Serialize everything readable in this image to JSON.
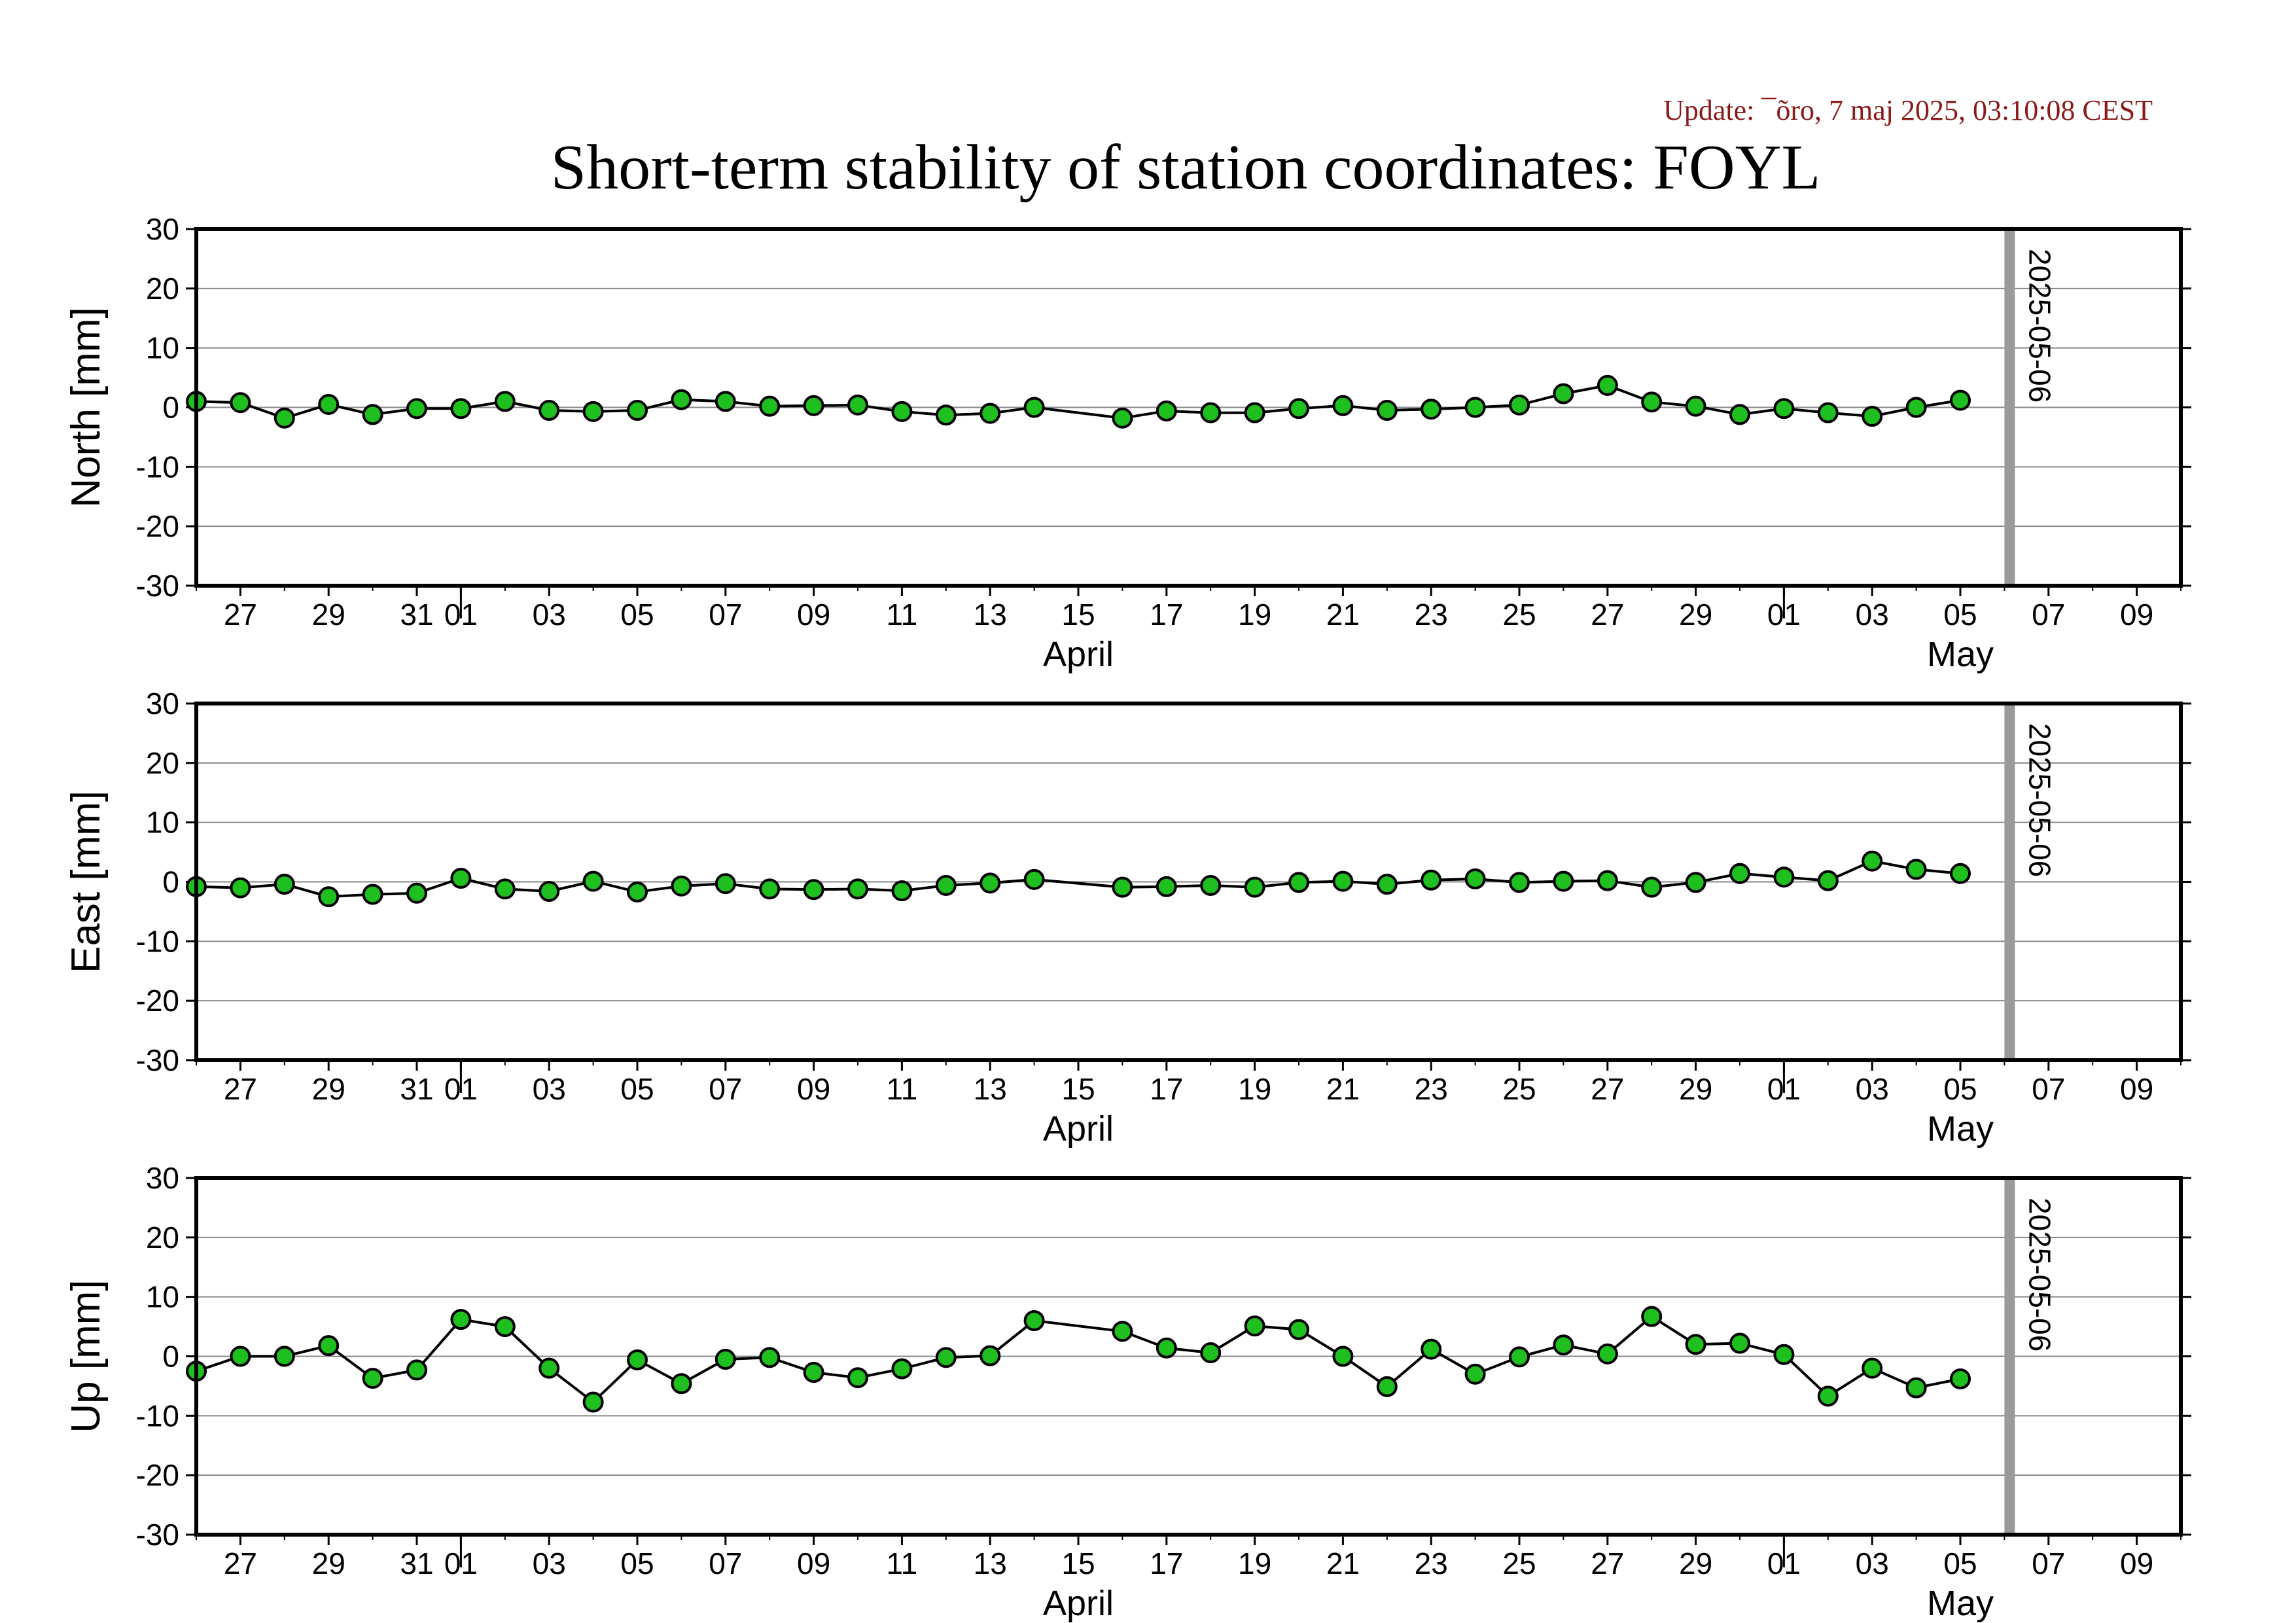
{
  "update": "Update: ¯õro, 7 maj 2025, 03:10:08 CEST",
  "title": "Short-term stability of station coordinates: FOYL",
  "colors": {
    "marker_fill": "#1fbf1f",
    "marker_stroke": "#000000",
    "series_line": "#000000",
    "marker_line": "#9a9a9a",
    "update_text": "#8b1a1a",
    "gridline": "#888888"
  },
  "chart_data": [
    {
      "type": "line",
      "ylabel": "North [mm]",
      "ylim": [
        -30,
        30
      ],
      "yticks": [
        -30,
        -20,
        -10,
        0,
        10,
        20,
        30
      ],
      "ygrid": true,
      "xlim": [
        "2025-03-26",
        "2025-05-10"
      ],
      "x_tick_labels": [
        "27",
        "29",
        "31",
        "01",
        "03",
        "05",
        "07",
        "09",
        "11",
        "13",
        "15",
        "17",
        "19",
        "21",
        "23",
        "25",
        "27",
        "29",
        "01",
        "03",
        "05",
        "07",
        "09"
      ],
      "x_tick_dates": [
        "2025-03-27",
        "2025-03-29",
        "2025-03-31",
        "2025-04-01",
        "2025-04-03",
        "2025-04-05",
        "2025-04-07",
        "2025-04-09",
        "2025-04-11",
        "2025-04-13",
        "2025-04-15",
        "2025-04-17",
        "2025-04-19",
        "2025-04-21",
        "2025-04-23",
        "2025-04-25",
        "2025-04-27",
        "2025-04-29",
        "2025-05-01",
        "2025-05-03",
        "2025-05-05",
        "2025-05-07",
        "2025-05-09"
      ],
      "month_labels": [
        {
          "label": "April",
          "date": "2025-04-15"
        },
        {
          "label": "May",
          "date": "2025-05-05"
        }
      ],
      "month_boundaries": [
        "2025-04-01",
        "2025-05-01"
      ],
      "marker": {
        "date": "2025-05-06",
        "label": "2025-05-06"
      },
      "x": [
        "2025-03-26",
        "2025-03-27",
        "2025-03-28",
        "2025-03-29",
        "2025-03-30",
        "2025-03-31",
        "2025-04-01",
        "2025-04-02",
        "2025-04-03",
        "2025-04-04",
        "2025-04-05",
        "2025-04-06",
        "2025-04-07",
        "2025-04-08",
        "2025-04-09",
        "2025-04-10",
        "2025-04-11",
        "2025-04-12",
        "2025-04-13",
        "2025-04-14",
        "2025-04-16",
        "2025-04-17",
        "2025-04-18",
        "2025-04-19",
        "2025-04-20",
        "2025-04-21",
        "2025-04-22",
        "2025-04-23",
        "2025-04-24",
        "2025-04-25",
        "2025-04-26",
        "2025-04-27",
        "2025-04-28",
        "2025-04-29",
        "2025-04-30",
        "2025-05-01",
        "2025-05-02",
        "2025-05-03",
        "2025-05-04",
        "2025-05-05"
      ],
      "y": [
        1.0,
        0.8,
        -1.8,
        0.5,
        -1.2,
        -0.2,
        -0.2,
        1.0,
        -0.5,
        -0.7,
        -0.5,
        1.3,
        1.0,
        0.2,
        0.3,
        0.4,
        -0.7,
        -1.3,
        -1.0,
        0.0,
        -1.8,
        -0.6,
        -0.9,
        -0.9,
        -0.2,
        0.3,
        -0.5,
        -0.3,
        0.0,
        0.4,
        2.3,
        3.7,
        0.9,
        0.2,
        -1.2,
        -0.2,
        -0.9,
        -1.5,
        0.0,
        1.2
      ]
    },
    {
      "type": "line",
      "ylabel": "East [mm]",
      "ylim": [
        -30,
        30
      ],
      "yticks": [
        -30,
        -20,
        -10,
        0,
        10,
        20,
        30
      ],
      "ygrid": true,
      "xlim": [
        "2025-03-26",
        "2025-05-10"
      ],
      "x_tick_labels": [
        "27",
        "29",
        "31",
        "01",
        "03",
        "05",
        "07",
        "09",
        "11",
        "13",
        "15",
        "17",
        "19",
        "21",
        "23",
        "25",
        "27",
        "29",
        "01",
        "03",
        "05",
        "07",
        "09"
      ],
      "x_tick_dates": [
        "2025-03-27",
        "2025-03-29",
        "2025-03-31",
        "2025-04-01",
        "2025-04-03",
        "2025-04-05",
        "2025-04-07",
        "2025-04-09",
        "2025-04-11",
        "2025-04-13",
        "2025-04-15",
        "2025-04-17",
        "2025-04-19",
        "2025-04-21",
        "2025-04-23",
        "2025-04-25",
        "2025-04-27",
        "2025-04-29",
        "2025-05-01",
        "2025-05-03",
        "2025-05-05",
        "2025-05-07",
        "2025-05-09"
      ],
      "month_labels": [
        {
          "label": "April",
          "date": "2025-04-15"
        },
        {
          "label": "May",
          "date": "2025-05-05"
        }
      ],
      "month_boundaries": [
        "2025-04-01",
        "2025-05-01"
      ],
      "marker": {
        "date": "2025-05-06",
        "label": "2025-05-06"
      },
      "x": [
        "2025-03-26",
        "2025-03-27",
        "2025-03-28",
        "2025-03-29",
        "2025-03-30",
        "2025-03-31",
        "2025-04-01",
        "2025-04-02",
        "2025-04-03",
        "2025-04-04",
        "2025-04-05",
        "2025-04-06",
        "2025-04-07",
        "2025-04-08",
        "2025-04-09",
        "2025-04-10",
        "2025-04-11",
        "2025-04-12",
        "2025-04-13",
        "2025-04-14",
        "2025-04-16",
        "2025-04-17",
        "2025-04-18",
        "2025-04-19",
        "2025-04-20",
        "2025-04-21",
        "2025-04-22",
        "2025-04-23",
        "2025-04-24",
        "2025-04-25",
        "2025-04-26",
        "2025-04-27",
        "2025-04-28",
        "2025-04-29",
        "2025-04-30",
        "2025-05-01",
        "2025-05-02",
        "2025-05-03",
        "2025-05-04",
        "2025-05-05"
      ],
      "y": [
        -0.8,
        -1.0,
        -0.4,
        -2.5,
        -2.1,
        -1.9,
        0.6,
        -1.2,
        -1.6,
        0.1,
        -1.7,
        -0.7,
        -0.3,
        -1.2,
        -1.3,
        -1.2,
        -1.5,
        -0.6,
        -0.2,
        0.4,
        -0.9,
        -0.8,
        -0.6,
        -0.9,
        -0.1,
        0.1,
        -0.4,
        0.3,
        0.5,
        -0.1,
        0.1,
        0.2,
        -0.9,
        -0.1,
        1.4,
        0.8,
        0.2,
        3.5,
        2.1,
        1.4
      ]
    },
    {
      "type": "line",
      "ylabel": "Up [mm]",
      "ylim": [
        -30,
        30
      ],
      "yticks": [
        -30,
        -20,
        -10,
        0,
        10,
        20,
        30
      ],
      "ygrid": true,
      "xlim": [
        "2025-03-26",
        "2025-05-10"
      ],
      "x_tick_labels": [
        "27",
        "29",
        "31",
        "01",
        "03",
        "05",
        "07",
        "09",
        "11",
        "13",
        "15",
        "17",
        "19",
        "21",
        "23",
        "25",
        "27",
        "29",
        "01",
        "03",
        "05",
        "07",
        "09"
      ],
      "x_tick_dates": [
        "2025-03-27",
        "2025-03-29",
        "2025-03-31",
        "2025-04-01",
        "2025-04-03",
        "2025-04-05",
        "2025-04-07",
        "2025-04-09",
        "2025-04-11",
        "2025-04-13",
        "2025-04-15",
        "2025-04-17",
        "2025-04-19",
        "2025-04-21",
        "2025-04-23",
        "2025-04-25",
        "2025-04-27",
        "2025-04-29",
        "2025-05-01",
        "2025-05-03",
        "2025-05-05",
        "2025-05-07",
        "2025-05-09"
      ],
      "month_labels": [
        {
          "label": "April",
          "date": "2025-04-15"
        },
        {
          "label": "May",
          "date": "2025-05-05"
        }
      ],
      "month_boundaries": [
        "2025-04-01",
        "2025-05-01"
      ],
      "marker": {
        "date": "2025-05-06",
        "label": "2025-05-06"
      },
      "x": [
        "2025-03-26",
        "2025-03-27",
        "2025-03-28",
        "2025-03-29",
        "2025-03-30",
        "2025-03-31",
        "2025-04-01",
        "2025-04-02",
        "2025-04-03",
        "2025-04-04",
        "2025-04-05",
        "2025-04-06",
        "2025-04-07",
        "2025-04-08",
        "2025-04-09",
        "2025-04-10",
        "2025-04-11",
        "2025-04-12",
        "2025-04-13",
        "2025-04-14",
        "2025-04-16",
        "2025-04-17",
        "2025-04-18",
        "2025-04-19",
        "2025-04-20",
        "2025-04-21",
        "2025-04-22",
        "2025-04-23",
        "2025-04-24",
        "2025-04-25",
        "2025-04-26",
        "2025-04-27",
        "2025-04-28",
        "2025-04-29",
        "2025-04-30",
        "2025-05-01",
        "2025-05-02",
        "2025-05-03",
        "2025-05-04",
        "2025-05-05"
      ],
      "y": [
        -2.5,
        0.0,
        0.0,
        1.8,
        -3.7,
        -2.3,
        6.2,
        5.0,
        -2.0,
        -7.7,
        -0.6,
        -4.6,
        -0.5,
        -0.2,
        -2.7,
        -3.6,
        -2.1,
        -0.2,
        0.1,
        6.0,
        4.2,
        1.4,
        0.6,
        5.1,
        4.5,
        0.0,
        -5.1,
        1.2,
        -3.0,
        -0.1,
        1.9,
        0.4,
        6.7,
        2.0,
        2.2,
        0.3,
        -6.7,
        -2.0,
        -5.3,
        -3.8
      ]
    }
  ]
}
